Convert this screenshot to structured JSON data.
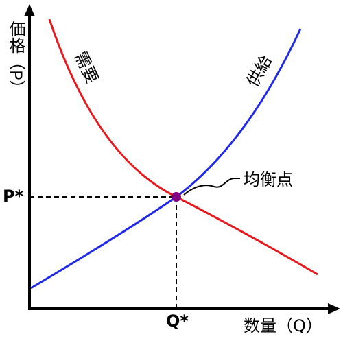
{
  "axes": {
    "y_label": "価格（P）",
    "x_label": "数量（Q）"
  },
  "curves": {
    "demand": "需要",
    "supply": "供給"
  },
  "equilibrium": {
    "label": "均衡点",
    "price": "P*",
    "quantity": "Q*"
  }
}
